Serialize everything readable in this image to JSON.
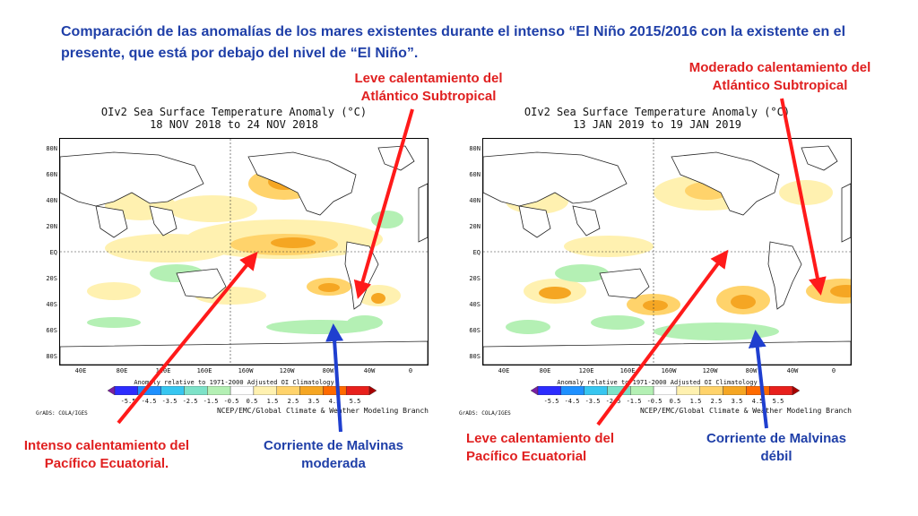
{
  "heading": "Comparación de las anomalías de los mares existentes durante el intenso “El Niño 2015/2016 con la existente en el presente, que está por debajo del nivel de “El Niño”.",
  "maps": [
    {
      "title": "OIv2 Sea Surface Temperature Anomaly (°C)",
      "dates": "18 NOV 2018 to 24 NOV 2018",
      "lat_labels": [
        "80N",
        "60N",
        "40N",
        "20N",
        "EQ",
        "20S",
        "40S",
        "60S",
        "80S"
      ],
      "lon_labels": [
        "40E",
        "80E",
        "120E",
        "160E",
        "160W",
        "120W",
        "80W",
        "40W",
        "0"
      ],
      "anomaly_note": "Anomaly relative to 1971-2000 Adjusted OI Climatology",
      "colorbar_labels": [
        "-5.5",
        "-4.5",
        "-3.5",
        "-2.5",
        "-1.5",
        "-0.5",
        "0.5",
        "1.5",
        "2.5",
        "3.5",
        "4.5",
        "5.5"
      ],
      "credit": "GrADS: COLA/IGES",
      "branch": "NCEP/EMC/Global Climate & Weather Modeling Branch"
    },
    {
      "title": "OIv2 Sea Surface Temperature Anomaly (°C)",
      "dates": "13 JAN 2019 to 19 JAN 2019",
      "lat_labels": [
        "80N",
        "60N",
        "40N",
        "20N",
        "EQ",
        "20S",
        "40S",
        "60S",
        "80S"
      ],
      "lon_labels": [
        "40E",
        "80E",
        "120E",
        "160E",
        "160W",
        "120W",
        "80W",
        "40W",
        "0"
      ],
      "anomaly_note": "Anomaly relative to 1971-2000 Adjusted OI Climatology",
      "colorbar_labels": [
        "-5.5",
        "-4.5",
        "-3.5",
        "-2.5",
        "-1.5",
        "-0.5",
        "0.5",
        "1.5",
        "2.5",
        "3.5",
        "4.5",
        "5.5"
      ],
      "credit": "GrADS: COLA/IGES",
      "branch": "NCEP/EMC/Global Climate & Weather Modeling Branch"
    }
  ],
  "colorbar_colors": [
    "#7a1fa2",
    "#2c2cff",
    "#1e90ff",
    "#37c6f0",
    "#7de2c8",
    "#b4f0b4",
    "#ffffff",
    "#fff1b0",
    "#ffd36b",
    "#f5a623",
    "#ff6a00",
    "#e8201c",
    "#a80000"
  ],
  "annotations": {
    "left_top": "Leve calentamiento del Atlántico Subtropical",
    "right_top": "Moderado calentamiento del Atlántico Subtropical",
    "left_bottom_red": "Intenso calentamiento del Pacífico Ecuatorial.",
    "left_bottom_blue": "Corriente de Malvinas moderada",
    "right_bottom_red": "Leve calentamiento del Pacífico Ecuatorial",
    "right_bottom_blue": "Corriente de Malvinas débil"
  }
}
